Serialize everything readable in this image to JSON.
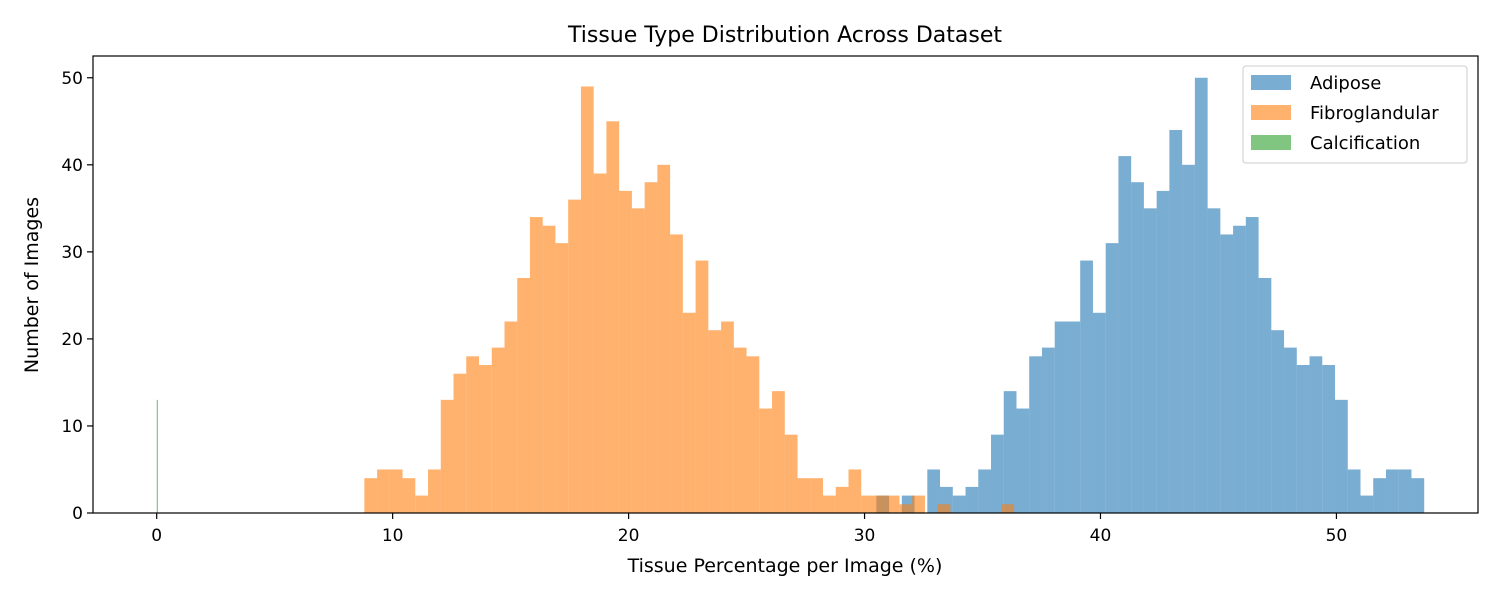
{
  "chart_data": {
    "type": "histogram",
    "title": "Tissue Type Distribution Across Dataset",
    "xlabel": "Tissue Percentage per Image (%)",
    "ylabel": "Number of Images",
    "xlim": [
      -2.7,
      56.0
    ],
    "ylim": [
      0,
      52.5
    ],
    "xticks": [
      0,
      10,
      20,
      30,
      40,
      50
    ],
    "yticks": [
      0,
      10,
      20,
      30,
      40,
      50
    ],
    "grid": false,
    "legend_position": "top-right",
    "bar_alpha": 0.6,
    "series": [
      {
        "name": "Adipose",
        "color": "#1f77b4",
        "bin_start": 30.5,
        "bin_width": 0.54,
        "counts": [
          2,
          0,
          2,
          0,
          5,
          3,
          2,
          3,
          5,
          9,
          14,
          12,
          18,
          19,
          22,
          22,
          29,
          23,
          31,
          41,
          38,
          35,
          37,
          44,
          40,
          50,
          35,
          32,
          33,
          34,
          27,
          21,
          19,
          17,
          18,
          17,
          13,
          5,
          2,
          4,
          5,
          5,
          4
        ]
      },
      {
        "name": "Fibroglandular",
        "color": "#ff7f0e",
        "bin_start": 8.8,
        "bin_width": 0.54,
        "counts": [
          4,
          5,
          5,
          4,
          2,
          5,
          13,
          16,
          18,
          17,
          19,
          22,
          27,
          34,
          33,
          31,
          36,
          49,
          39,
          45,
          37,
          35,
          38,
          40,
          32,
          23,
          29,
          21,
          22,
          19,
          18,
          12,
          14,
          9,
          4,
          4,
          2,
          3,
          5,
          2,
          2,
          2,
          1,
          2,
          0,
          1,
          0,
          0,
          0,
          0,
          1
        ]
      },
      {
        "name": "Calcification",
        "color": "#2ca02c",
        "bin_start": 0.0,
        "bin_width": 0.05,
        "counts": [
          13
        ]
      }
    ]
  }
}
